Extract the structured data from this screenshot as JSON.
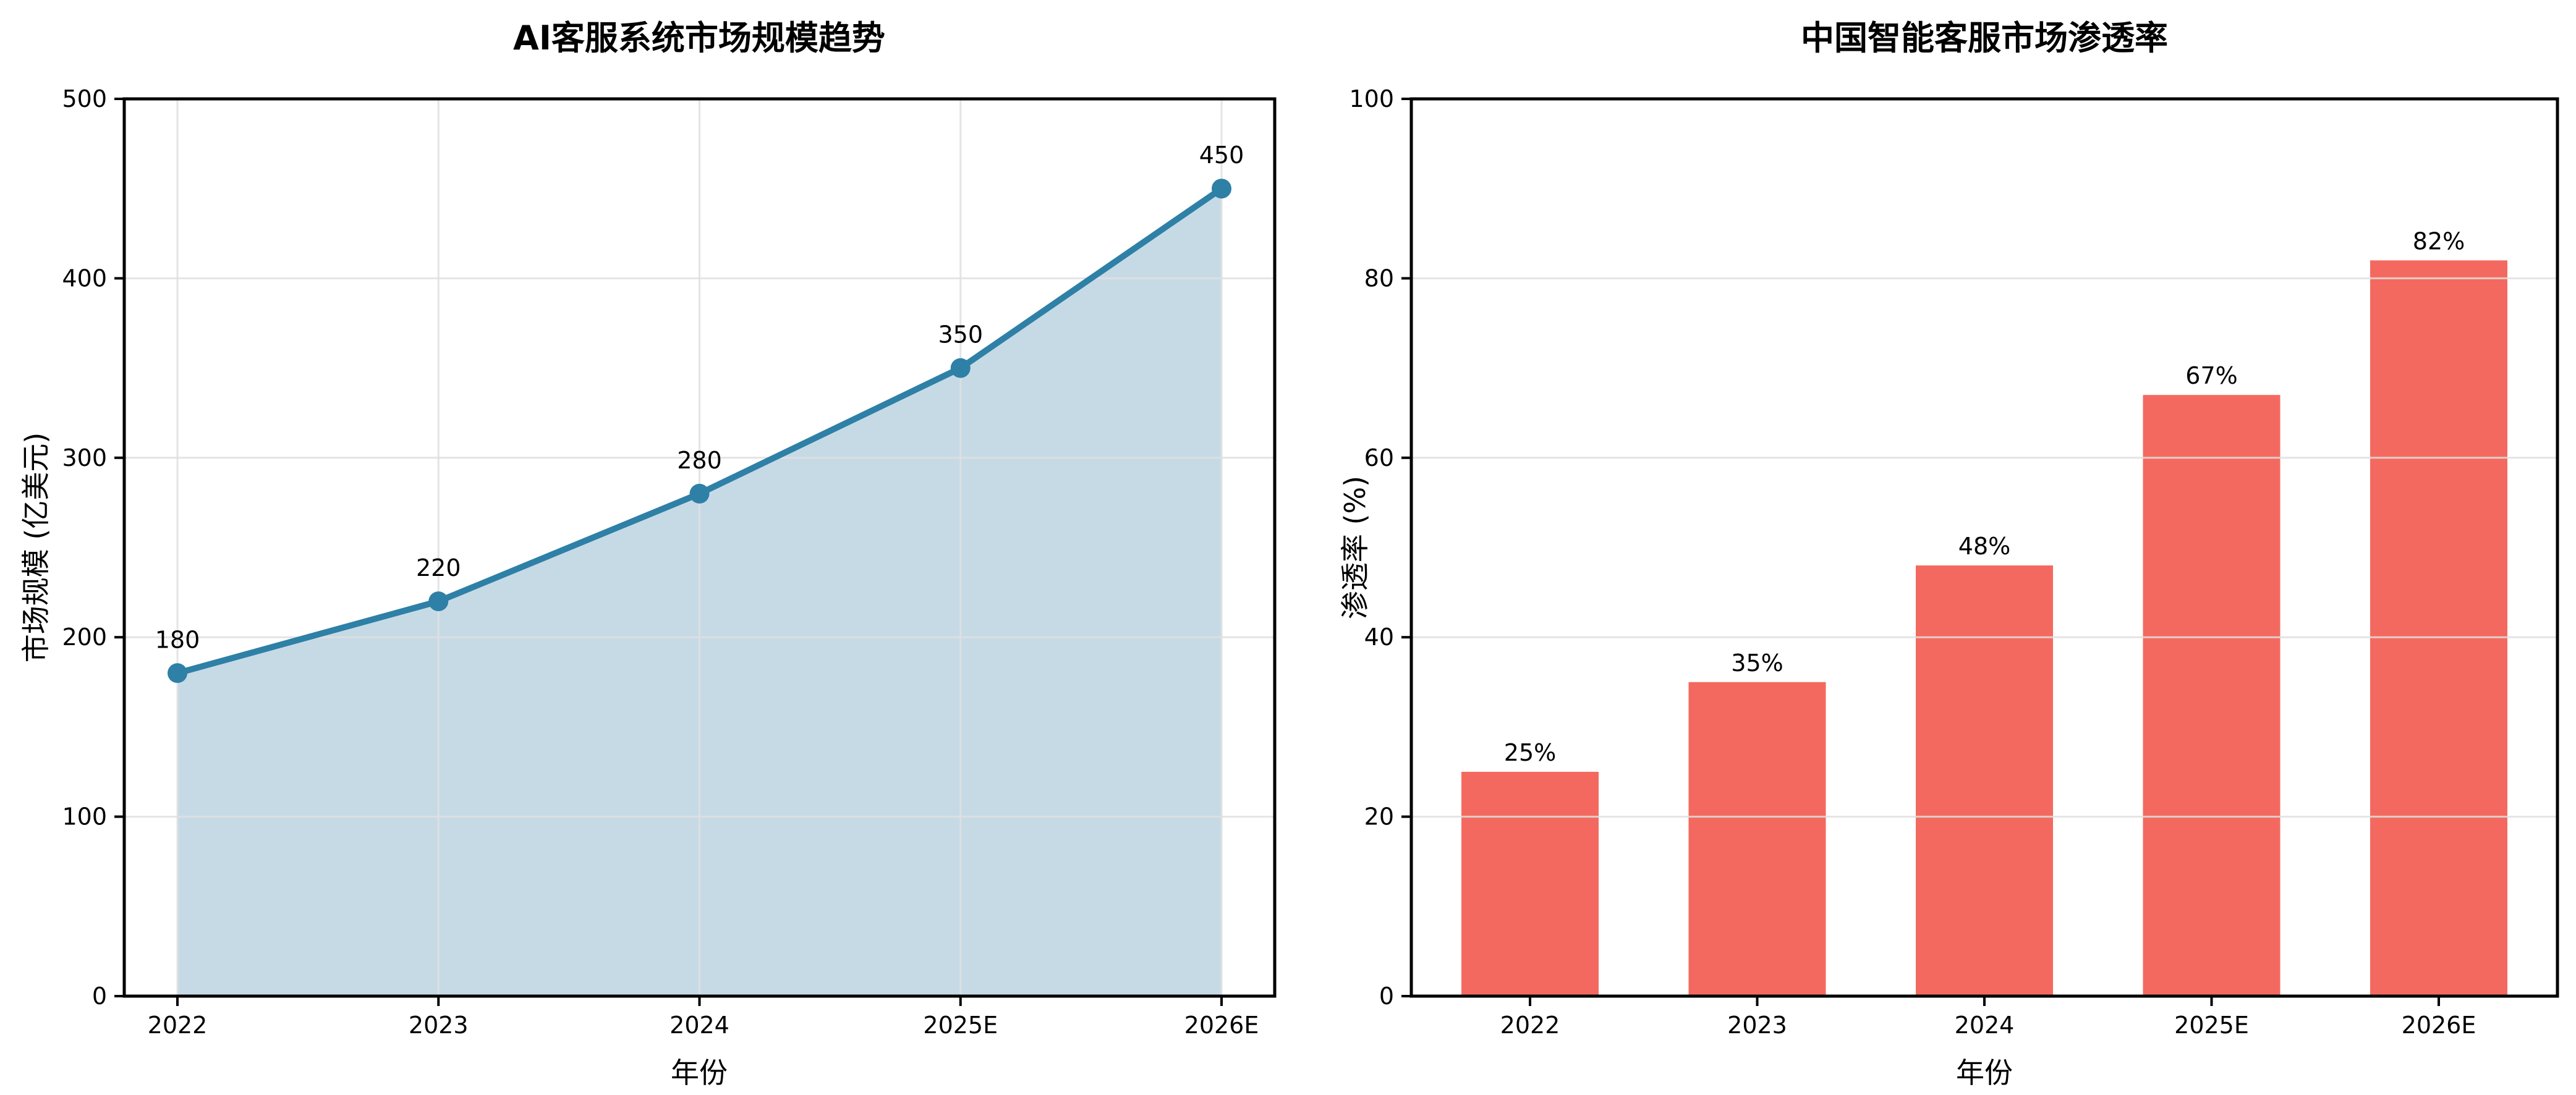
{
  "figure": {
    "background": "#ffffff",
    "text_color": "#000000"
  },
  "chart_data": [
    {
      "type": "area",
      "title": "AI客服系统市场规模趋势",
      "xlabel": "年份",
      "ylabel": "市场规模 (亿美元)",
      "categories": [
        "2022",
        "2023",
        "2024",
        "2025E",
        "2026E"
      ],
      "values": [
        180,
        220,
        280,
        350,
        450
      ],
      "point_labels": [
        "180",
        "220",
        "280",
        "350",
        "450"
      ],
      "ylim": [
        0,
        500
      ],
      "yticks": [
        0,
        100,
        200,
        300,
        400,
        500
      ],
      "grid": "both",
      "legend": "none",
      "line_color": "#2E80A6",
      "fill_color": "#C6DAE6",
      "marker": "circle"
    },
    {
      "type": "bar",
      "title": "中国智能客服市场渗透率",
      "xlabel": "年份",
      "ylabel": "渗透率 (%)",
      "categories": [
        "2022",
        "2023",
        "2024",
        "2025E",
        "2026E"
      ],
      "values": [
        25,
        35,
        48,
        67,
        82
      ],
      "bar_labels": [
        "25%",
        "35%",
        "48%",
        "67%",
        "82%"
      ],
      "ylim": [
        0,
        100
      ],
      "yticks": [
        0,
        20,
        40,
        60,
        80,
        100
      ],
      "grid": "y",
      "legend": "none",
      "bar_color": "#F4695F"
    }
  ]
}
